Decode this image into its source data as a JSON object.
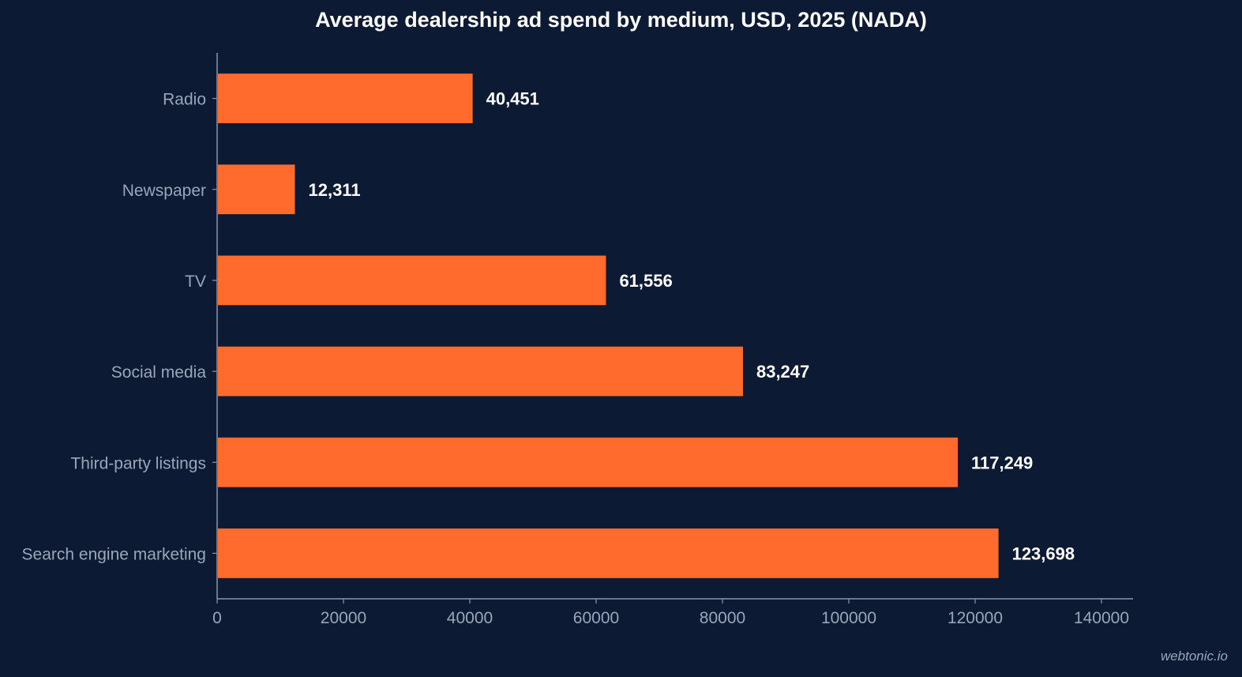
{
  "chart_data": {
    "type": "bar",
    "orientation": "horizontal",
    "title": "Average dealership ad spend by medium, USD, 2025 (NADA)",
    "xlabel": "",
    "ylabel": "",
    "categories": [
      "Radio",
      "Newspaper",
      "TV",
      "Social media",
      "Third-party listings",
      "Search engine marketing"
    ],
    "values": [
      40451,
      12311,
      61556,
      83247,
      117249,
      123698
    ],
    "value_labels": [
      "40,451",
      "12,311",
      "61,556",
      "83,247",
      "117,249",
      "123,698"
    ],
    "xlim": [
      0,
      145000
    ],
    "xticks": [
      0,
      20000,
      40000,
      60000,
      80000,
      100000,
      120000,
      140000
    ],
    "xtick_labels": [
      "0",
      "20000",
      "40000",
      "60000",
      "80000",
      "100000",
      "120000",
      "140000"
    ],
    "grid": false,
    "bar_color": "#ff6b2c"
  },
  "watermark": "webtonic.io",
  "colors": {
    "background": "#0c1b33",
    "axis": "#8a97ab",
    "tick_label": "#9aa6b8",
    "value_label": "#ffffff"
  }
}
